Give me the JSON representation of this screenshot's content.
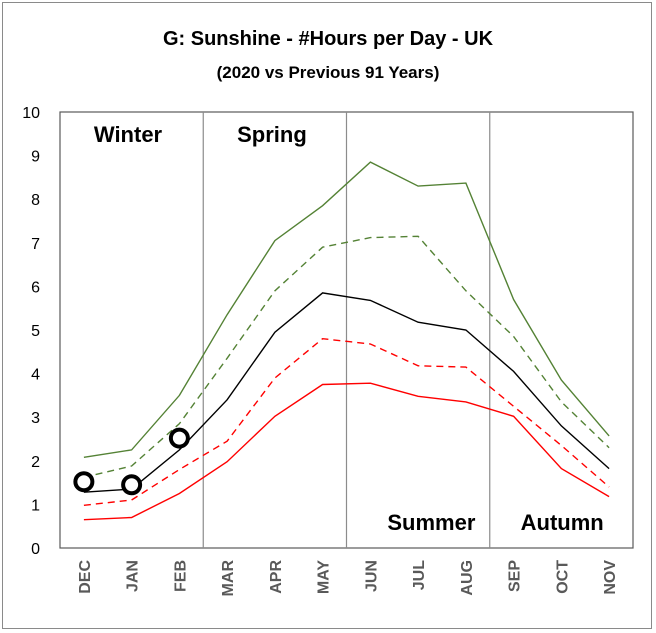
{
  "chart_data": {
    "type": "line",
    "title": "G: Sunshine - #Hours per Day - UK",
    "subtitle": "(2020 vs Previous 91 Years)",
    "categories": [
      "DEC",
      "JAN",
      "FEB",
      "MAR",
      "APR",
      "MAY",
      "JUN",
      "JUL",
      "AUG",
      "SEP",
      "OCT",
      "NOV"
    ],
    "ylim": [
      0,
      10
    ],
    "yticks": [
      "0",
      "1",
      "2",
      "3",
      "4",
      "5",
      "6",
      "7",
      "8",
      "9",
      "10"
    ],
    "grid": false,
    "seasons": [
      {
        "label": "Winter",
        "start_index": 0
      },
      {
        "label": "Spring",
        "start_index": 3
      },
      {
        "label": "Summer",
        "start_index": 6
      },
      {
        "label": "Autumn",
        "start_index": 9
      }
    ],
    "series": [
      {
        "color": "#548235",
        "dash": "solid",
        "values": [
          2.08,
          2.25,
          3.5,
          5.35,
          7.05,
          7.85,
          8.85,
          8.3,
          8.37,
          5.7,
          3.85,
          2.57
        ]
      },
      {
        "color": "#548235",
        "dash": "dashed",
        "values": [
          1.62,
          1.88,
          2.85,
          4.35,
          5.9,
          6.9,
          7.12,
          7.15,
          5.9,
          4.85,
          3.35,
          2.3
        ]
      },
      {
        "color": "#000000",
        "dash": "solid",
        "values": [
          1.28,
          1.35,
          2.25,
          3.4,
          4.95,
          5.85,
          5.68,
          5.18,
          5.0,
          4.05,
          2.8,
          1.82
        ]
      },
      {
        "color": "#ff0000",
        "dash": "dashed",
        "values": [
          0.98,
          1.1,
          1.8,
          2.45,
          3.9,
          4.8,
          4.68,
          4.18,
          4.15,
          3.25,
          2.35,
          1.4
        ]
      },
      {
        "color": "#ff0000",
        "dash": "solid",
        "values": [
          0.65,
          0.7,
          1.25,
          1.98,
          3.02,
          3.75,
          3.78,
          3.48,
          3.35,
          3.02,
          1.82,
          1.18
        ]
      }
    ],
    "markers_2020": {
      "values": [
        1.52,
        1.45,
        2.52
      ],
      "color": "#000000"
    }
  }
}
